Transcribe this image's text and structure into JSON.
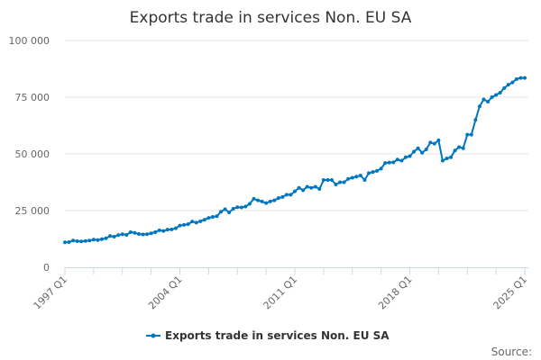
{
  "chart_data": {
    "type": "line",
    "title": "Exports trade in services Non. EU SA",
    "xlabel": "",
    "ylabel": "",
    "ylim": [
      0,
      100000
    ],
    "y_ticks": [
      0,
      25000,
      50000,
      75000,
      100000
    ],
    "y_tick_labels": [
      "0",
      "25 000",
      "50 000",
      "75 000",
      "100 000"
    ],
    "x_tick_labels": [
      "1997 Q1",
      "2004 Q1",
      "2011 Q1",
      "2018 Q1",
      "2025 Q1"
    ],
    "x_tick_label_indices": [
      0,
      28,
      56,
      84,
      112
    ],
    "grid": true,
    "legend_position": "bottom",
    "start_period": "1997 Q1",
    "end_period": "2025 Q1",
    "color": "#0077c0",
    "series": [
      {
        "name": "Exports trade in services Non. EU SA",
        "values": [
          11000,
          11100,
          11800,
          11500,
          11400,
          11600,
          11800,
          12200,
          12000,
          12400,
          12800,
          13800,
          13500,
          14200,
          14600,
          14300,
          15500,
          15200,
          14700,
          14500,
          14600,
          15000,
          15500,
          16300,
          16000,
          16600,
          16700,
          17200,
          18400,
          18700,
          19000,
          20200,
          19700,
          20300,
          21000,
          21800,
          22200,
          22500,
          24500,
          25600,
          24200,
          25800,
          26500,
          26400,
          26800,
          28000,
          30200,
          29500,
          29000,
          28300,
          29000,
          29500,
          30500,
          31000,
          32000,
          32000,
          33500,
          35000,
          34000,
          35500,
          35000,
          35500,
          34500,
          38500,
          38500,
          38500,
          36500,
          37500,
          37500,
          39000,
          39500,
          40000,
          40500,
          38500,
          41500,
          42000,
          42500,
          43500,
          46000,
          46200,
          46300,
          47500,
          47000,
          48500,
          49000,
          51000,
          52500,
          50500,
          52000,
          55000,
          54500,
          56000,
          47000,
          48000,
          48500,
          51500,
          53000,
          52500,
          58500,
          58500,
          65000,
          71000,
          74000,
          73000,
          75000,
          76000,
          77000,
          79000,
          80500,
          81500,
          83000,
          83500,
          83500
        ]
      }
    ]
  },
  "source_label": "Source:"
}
